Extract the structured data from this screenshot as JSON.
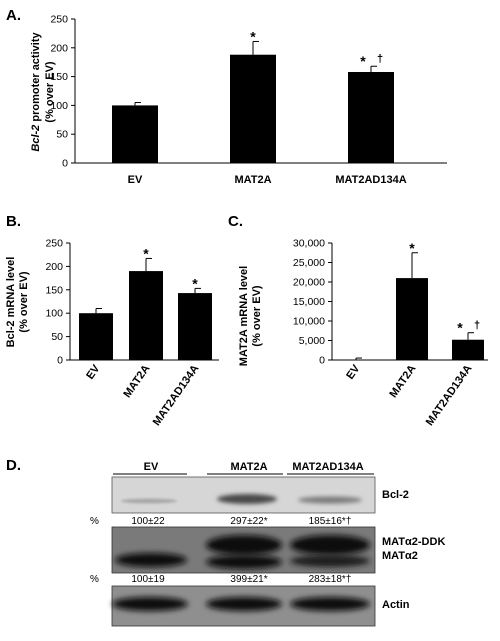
{
  "figure": {
    "charts": [
      {
        "id": "A",
        "letter": "A.",
        "type": "bar",
        "ylabel_italic": "Bcl-2",
        "ylabel_rest": " promoter activity",
        "ylabel_line2": "(% over EV)",
        "categories": [
          "EV",
          "MAT2A",
          "MAT2AD134A"
        ],
        "values": [
          100,
          188,
          158
        ],
        "errors": [
          5,
          23,
          10
        ],
        "sig": [
          [],
          [
            "*"
          ],
          [
            "*",
            "†"
          ]
        ],
        "ylim": [
          0,
          250
        ],
        "yticks": [
          "0",
          "50",
          "100",
          "150",
          "200",
          "250"
        ],
        "rotated_categories": false
      },
      {
        "id": "B",
        "letter": "B.",
        "type": "bar",
        "ylabel_line1": "Bcl-2 mRNA level",
        "ylabel_line2": "(% over EV)",
        "categories": [
          "EV",
          "MAT2A",
          "MAT2AD134A"
        ],
        "values": [
          100,
          190,
          143
        ],
        "errors": [
          10,
          27,
          10
        ],
        "sig": [
          [],
          [
            "*"
          ],
          [
            "*"
          ]
        ],
        "ylim": [
          0,
          250
        ],
        "yticks": [
          "0",
          "50",
          "100",
          "150",
          "200",
          "250"
        ],
        "rotated_categories": true
      },
      {
        "id": "C",
        "letter": "C.",
        "type": "bar",
        "ylabel_line1": "MAT2A mRNA level",
        "ylabel_line2": "(% over EV)",
        "categories": [
          "EV",
          "MAT2A",
          "MAT2AD134A"
        ],
        "values": [
          100,
          21000,
          5200
        ],
        "errors": [
          400,
          6500,
          1800
        ],
        "sig": [
          [],
          [
            "*"
          ],
          [
            "*",
            "†"
          ]
        ],
        "ylim": [
          0,
          30000
        ],
        "yticks": [
          "0",
          "5,000",
          "10,000",
          "15,000",
          "20,000",
          "25,000",
          "30,000"
        ],
        "rotated_categories": true
      }
    ],
    "blot": {
      "letter": "D.",
      "groups": [
        "EV",
        "MAT2A",
        "MAT2AD134A"
      ],
      "bands": [
        {
          "label": "Bcl-2",
          "quant_prefix": "%",
          "quant": [
            "100±22",
            "297±22*",
            "185±16*†"
          ]
        },
        {
          "label": "MATα2-DDK",
          "label2": "MATα2",
          "quant_prefix": "%",
          "quant": [
            "100±19",
            "399±21*",
            "283±18*†"
          ]
        },
        {
          "label": "Actin"
        }
      ]
    }
  },
  "chart_data": [
    {
      "type": "bar",
      "categories": [
        "EV",
        "MAT2A",
        "MAT2AD134A"
      ],
      "values": [
        100,
        188,
        158
      ],
      "ylabel": "Bcl-2 promoter activity (% over EV)",
      "ylim": [
        0,
        250
      ]
    },
    {
      "type": "bar",
      "categories": [
        "EV",
        "MAT2A",
        "MAT2AD134A"
      ],
      "values": [
        100,
        190,
        143
      ],
      "ylabel": "Bcl-2 mRNA level (% over EV)",
      "ylim": [
        0,
        250
      ]
    },
    {
      "type": "bar",
      "categories": [
        "EV",
        "MAT2A",
        "MAT2AD134A"
      ],
      "values": [
        100,
        21000,
        5200
      ],
      "ylabel": "MAT2A mRNA level (% over EV)",
      "ylim": [
        0,
        30000
      ]
    }
  ]
}
